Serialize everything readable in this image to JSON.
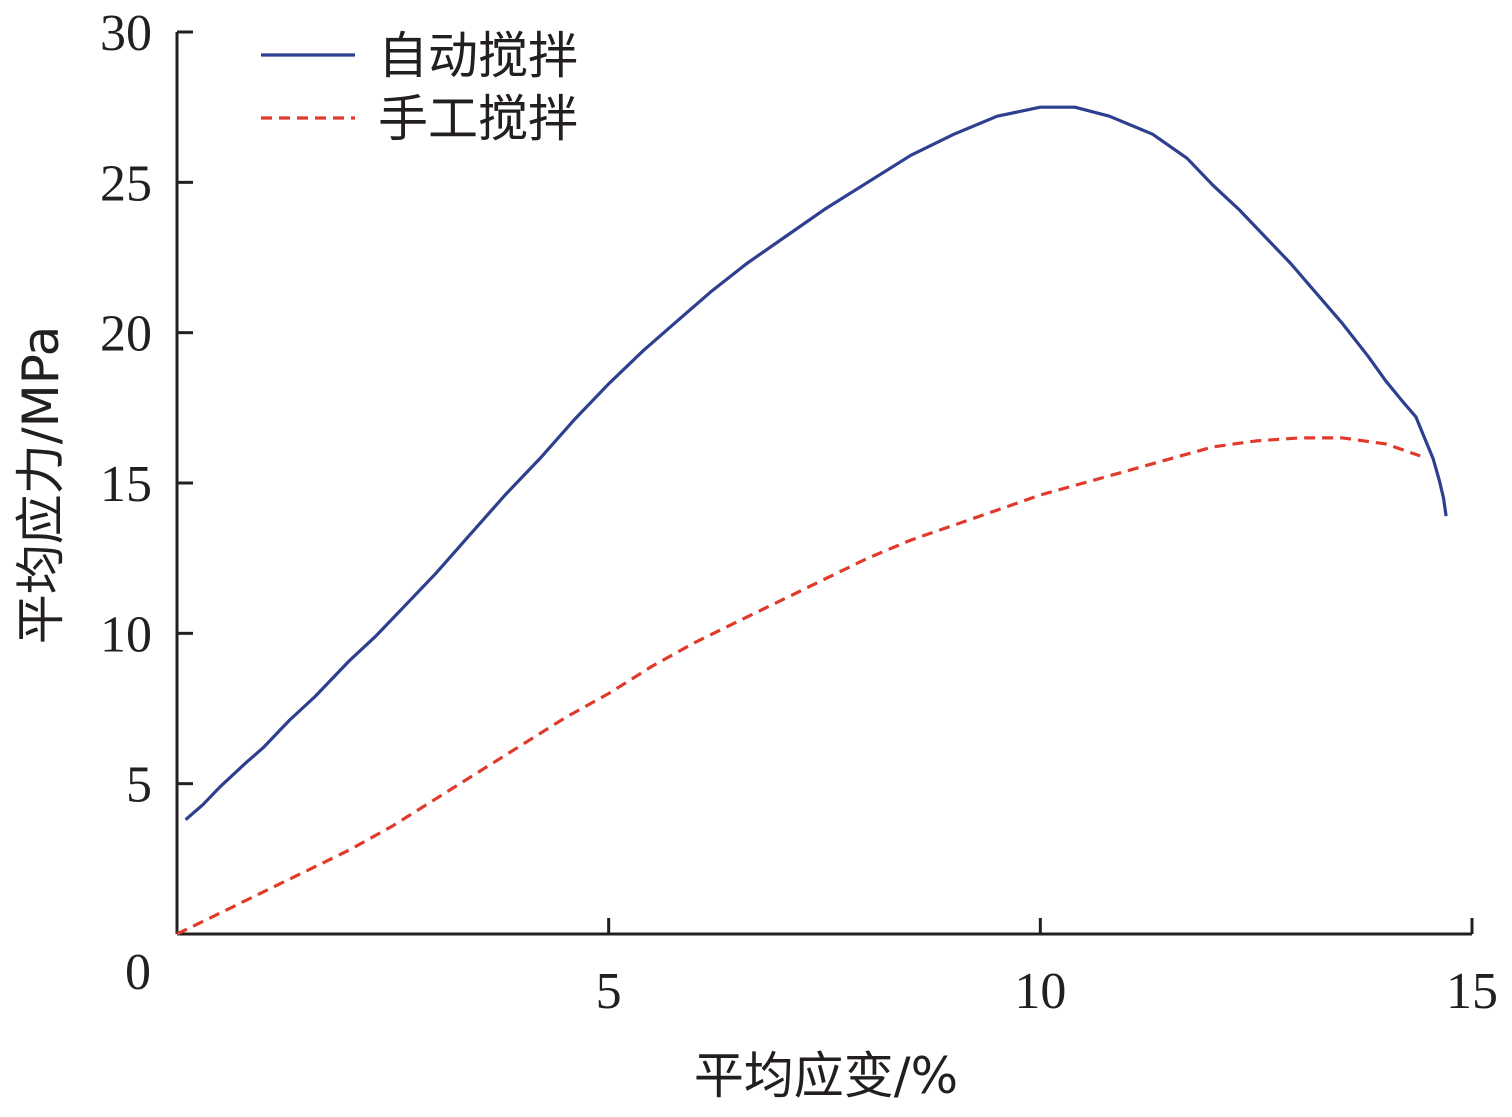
{
  "chart_data": {
    "type": "line",
    "xlabel": "平均应变/%",
    "ylabel": "平均应力/MPa",
    "xlim": [
      0,
      15
    ],
    "ylim": [
      0,
      30
    ],
    "x_ticks": [
      "0",
      "5",
      "10",
      "15"
    ],
    "y_ticks": [
      "5",
      "10",
      "15",
      "20",
      "25",
      "30"
    ],
    "grid": false,
    "legend_position": "top-left",
    "series": [
      {
        "name": "自动搅拌",
        "color": "#2e3f8f",
        "dash": "solid",
        "points": [
          [
            0.1,
            3.8
          ],
          [
            0.3,
            4.3
          ],
          [
            0.5,
            4.9
          ],
          [
            0.8,
            5.7
          ],
          [
            1.0,
            6.2
          ],
          [
            1.3,
            7.1
          ],
          [
            1.6,
            7.9
          ],
          [
            2.0,
            9.1
          ],
          [
            2.3,
            9.9
          ],
          [
            2.7,
            11.1
          ],
          [
            3.0,
            12.0
          ],
          [
            3.4,
            13.3
          ],
          [
            3.8,
            14.6
          ],
          [
            4.2,
            15.8
          ],
          [
            4.6,
            17.1
          ],
          [
            5.0,
            18.3
          ],
          [
            5.4,
            19.4
          ],
          [
            5.8,
            20.4
          ],
          [
            6.2,
            21.4
          ],
          [
            6.6,
            22.3
          ],
          [
            7.0,
            23.1
          ],
          [
            7.5,
            24.1
          ],
          [
            8.0,
            25.0
          ],
          [
            8.5,
            25.9
          ],
          [
            9.0,
            26.6
          ],
          [
            9.5,
            27.2
          ],
          [
            10.0,
            27.5
          ],
          [
            10.4,
            27.5
          ],
          [
            10.8,
            27.2
          ],
          [
            11.3,
            26.6
          ],
          [
            11.7,
            25.8
          ],
          [
            12.0,
            24.9
          ],
          [
            12.3,
            24.1
          ],
          [
            12.6,
            23.2
          ],
          [
            12.9,
            22.3
          ],
          [
            13.2,
            21.3
          ],
          [
            13.5,
            20.3
          ],
          [
            13.8,
            19.2
          ],
          [
            14.0,
            18.4
          ],
          [
            14.2,
            17.7
          ],
          [
            14.35,
            17.2
          ],
          [
            14.45,
            16.5
          ],
          [
            14.55,
            15.8
          ],
          [
            14.62,
            15.1
          ],
          [
            14.67,
            14.5
          ],
          [
            14.7,
            13.9
          ]
        ]
      },
      {
        "name": "手工搅拌",
        "color": "#e03a2c",
        "dash": "dashed",
        "points": [
          [
            0.0,
            0.0
          ],
          [
            0.5,
            0.7
          ],
          [
            1.0,
            1.4
          ],
          [
            1.5,
            2.1
          ],
          [
            2.0,
            2.8
          ],
          [
            2.5,
            3.6
          ],
          [
            3.0,
            4.5
          ],
          [
            3.5,
            5.4
          ],
          [
            4.0,
            6.3
          ],
          [
            4.5,
            7.2
          ],
          [
            5.0,
            8.0
          ],
          [
            5.5,
            8.9
          ],
          [
            6.0,
            9.7
          ],
          [
            6.5,
            10.4
          ],
          [
            7.0,
            11.1
          ],
          [
            7.5,
            11.8
          ],
          [
            8.0,
            12.5
          ],
          [
            8.5,
            13.1
          ],
          [
            9.0,
            13.6
          ],
          [
            9.5,
            14.1
          ],
          [
            10.0,
            14.6
          ],
          [
            10.5,
            15.0
          ],
          [
            11.0,
            15.4
          ],
          [
            11.5,
            15.8
          ],
          [
            12.0,
            16.2
          ],
          [
            12.5,
            16.4
          ],
          [
            13.0,
            16.5
          ],
          [
            13.5,
            16.5
          ],
          [
            14.0,
            16.3
          ],
          [
            14.4,
            15.9
          ]
        ]
      }
    ]
  }
}
